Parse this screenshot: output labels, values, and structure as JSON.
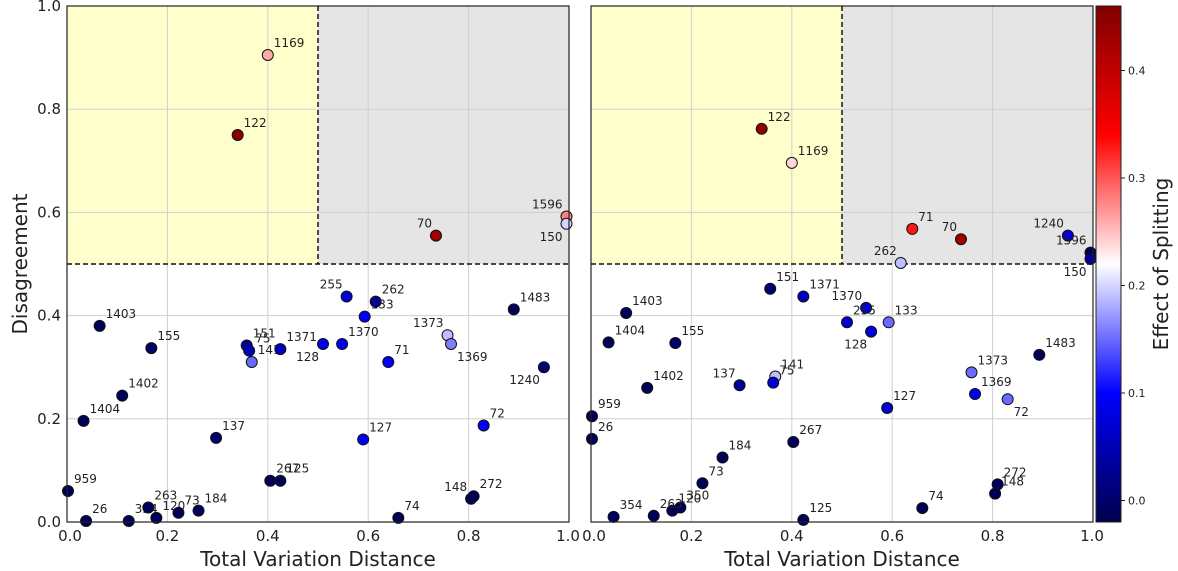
{
  "chart_data": [
    {
      "type": "scatter",
      "xlabel": "Total Variation Distance",
      "ylabel": "Disagreement",
      "xlim": [
        0,
        1
      ],
      "ylim": [
        0,
        1
      ],
      "xticks": [
        "0.0",
        "0.2",
        "0.4",
        "0.6",
        "0.8",
        "1.0"
      ],
      "yticks": [
        "0.0",
        "0.2",
        "0.4",
        "0.6",
        "0.8",
        "1.0"
      ],
      "grid": true,
      "threshold_x": 0.5,
      "threshold_y": 0.5,
      "region_colors": {
        "upper_left": "#ffffcc",
        "upper_right": "#e5e5e5"
      },
      "points": [
        {
          "label": "1169",
          "x": 0.4,
          "y": 0.905,
          "c": 0.26
        },
        {
          "label": "122",
          "x": 0.34,
          "y": 0.75,
          "c": 0.45
        },
        {
          "label": "1596",
          "x": 0.995,
          "y": 0.592,
          "c": 0.28
        },
        {
          "label": "150",
          "x": 0.995,
          "y": 0.578,
          "c": 0.2
        },
        {
          "label": "70",
          "x": 0.735,
          "y": 0.555,
          "c": 0.43
        },
        {
          "label": "255",
          "x": 0.557,
          "y": 0.437,
          "c": 0.07
        },
        {
          "label": "262",
          "x": 0.615,
          "y": 0.427,
          "c": 0.04
        },
        {
          "label": "133",
          "x": 0.593,
          "y": 0.398,
          "c": 0.1
        },
        {
          "label": "1483",
          "x": 0.89,
          "y": 0.412,
          "c": -0.01
        },
        {
          "label": "1403",
          "x": 0.065,
          "y": 0.38,
          "c": -0.01
        },
        {
          "label": "155",
          "x": 0.168,
          "y": 0.337,
          "c": 0.0
        },
        {
          "label": "151",
          "x": 0.358,
          "y": 0.342,
          "c": 0.04
        },
        {
          "label": "75",
          "x": 0.363,
          "y": 0.332,
          "c": 0.05
        },
        {
          "label": "141",
          "x": 0.368,
          "y": 0.31,
          "c": 0.15
        },
        {
          "label": "1371",
          "x": 0.425,
          "y": 0.335,
          "c": 0.06
        },
        {
          "label": "128",
          "x": 0.51,
          "y": 0.345,
          "c": 0.09
        },
        {
          "label": "1370",
          "x": 0.548,
          "y": 0.345,
          "c": 0.09
        },
        {
          "label": "1373",
          "x": 0.758,
          "y": 0.362,
          "c": 0.19
        },
        {
          "label": "1369",
          "x": 0.765,
          "y": 0.345,
          "c": 0.16
        },
        {
          "label": "71",
          "x": 0.64,
          "y": 0.31,
          "c": 0.1
        },
        {
          "label": "1240",
          "x": 0.95,
          "y": 0.3,
          "c": 0.01
        },
        {
          "label": "1402",
          "x": 0.11,
          "y": 0.245,
          "c": -0.01
        },
        {
          "label": "1404",
          "x": 0.033,
          "y": 0.196,
          "c": -0.01
        },
        {
          "label": "137",
          "x": 0.297,
          "y": 0.163,
          "c": 0.0
        },
        {
          "label": "127",
          "x": 0.59,
          "y": 0.16,
          "c": 0.09
        },
        {
          "label": "72",
          "x": 0.83,
          "y": 0.187,
          "c": 0.1
        },
        {
          "label": "267",
          "x": 0.405,
          "y": 0.08,
          "c": -0.01
        },
        {
          "label": "125",
          "x": 0.425,
          "y": 0.08,
          "c": -0.01
        },
        {
          "label": "959",
          "x": 0.002,
          "y": 0.06,
          "c": -0.01
        },
        {
          "label": "26",
          "x": 0.038,
          "y": 0.002,
          "c": -0.01
        },
        {
          "label": "354",
          "x": 0.123,
          "y": 0.002,
          "c": -0.01
        },
        {
          "label": "263",
          "x": 0.162,
          "y": 0.028,
          "c": -0.01
        },
        {
          "label": "120",
          "x": 0.178,
          "y": 0.008,
          "c": -0.01
        },
        {
          "label": "73",
          "x": 0.222,
          "y": 0.018,
          "c": -0.01
        },
        {
          "label": "184",
          "x": 0.262,
          "y": 0.022,
          "c": -0.01
        },
        {
          "label": "148",
          "x": 0.805,
          "y": 0.045,
          "c": -0.01
        },
        {
          "label": "272",
          "x": 0.81,
          "y": 0.05,
          "c": -0.01
        },
        {
          "label": "74",
          "x": 0.66,
          "y": 0.008,
          "c": -0.01
        }
      ]
    },
    {
      "type": "scatter",
      "xlabel": "Total Variation Distance",
      "ylabel": "",
      "xlim": [
        0,
        1
      ],
      "ylim": [
        0,
        1
      ],
      "xticks": [
        "0.0",
        "0.2",
        "0.4",
        "0.6",
        "0.8",
        "1.0"
      ],
      "grid": true,
      "threshold_x": 0.5,
      "threshold_y": 0.5,
      "region_colors": {
        "upper_left": "#ffffcc",
        "upper_right": "#e5e5e5"
      },
      "points": [
        {
          "label": "122",
          "x": 0.34,
          "y": 0.762,
          "c": 0.45
        },
        {
          "label": "1169",
          "x": 0.4,
          "y": 0.696,
          "c": 0.24
        },
        {
          "label": "71",
          "x": 0.64,
          "y": 0.568,
          "c": 0.33
        },
        {
          "label": "70",
          "x": 0.737,
          "y": 0.548,
          "c": 0.43
        },
        {
          "label": "262",
          "x": 0.617,
          "y": 0.502,
          "c": 0.19
        },
        {
          "label": "1240",
          "x": 0.95,
          "y": 0.555,
          "c": 0.08
        },
        {
          "label": "1596",
          "x": 0.995,
          "y": 0.522,
          "c": -0.01
        },
        {
          "label": "150",
          "x": 0.995,
          "y": 0.51,
          "c": 0.03
        },
        {
          "label": "151",
          "x": 0.357,
          "y": 0.452,
          "c": 0.0
        },
        {
          "label": "1371",
          "x": 0.423,
          "y": 0.437,
          "c": 0.06
        },
        {
          "label": "1370",
          "x": 0.548,
          "y": 0.415,
          "c": 0.09
        },
        {
          "label": "133",
          "x": 0.593,
          "y": 0.387,
          "c": 0.15
        },
        {
          "label": "255",
          "x": 0.51,
          "y": 0.387,
          "c": 0.07
        },
        {
          "label": "128",
          "x": 0.558,
          "y": 0.369,
          "c": 0.08
        },
        {
          "label": "1403",
          "x": 0.07,
          "y": 0.405,
          "c": -0.01
        },
        {
          "label": "1404",
          "x": 0.035,
          "y": 0.348,
          "c": -0.01
        },
        {
          "label": "155",
          "x": 0.168,
          "y": 0.347,
          "c": 0.0
        },
        {
          "label": "1483",
          "x": 0.893,
          "y": 0.324,
          "c": -0.01
        },
        {
          "label": "137",
          "x": 0.296,
          "y": 0.265,
          "c": 0.03
        },
        {
          "label": "141",
          "x": 0.367,
          "y": 0.282,
          "c": 0.19
        },
        {
          "label": "75",
          "x": 0.363,
          "y": 0.27,
          "c": 0.07
        },
        {
          "label": "1402",
          "x": 0.112,
          "y": 0.26,
          "c": -0.01
        },
        {
          "label": "1373",
          "x": 0.758,
          "y": 0.29,
          "c": 0.15
        },
        {
          "label": "1369",
          "x": 0.765,
          "y": 0.248,
          "c": 0.09
        },
        {
          "label": "72",
          "x": 0.83,
          "y": 0.238,
          "c": 0.15
        },
        {
          "label": "127",
          "x": 0.59,
          "y": 0.221,
          "c": 0.07
        },
        {
          "label": "959",
          "x": 0.002,
          "y": 0.205,
          "c": -0.01
        },
        {
          "label": "26",
          "x": 0.002,
          "y": 0.161,
          "c": -0.01
        },
        {
          "label": "267",
          "x": 0.403,
          "y": 0.155,
          "c": -0.01
        },
        {
          "label": "184",
          "x": 0.262,
          "y": 0.125,
          "c": -0.01
        },
        {
          "label": "73",
          "x": 0.222,
          "y": 0.075,
          "c": -0.01
        },
        {
          "label": "272",
          "x": 0.81,
          "y": 0.073,
          "c": -0.01
        },
        {
          "label": "148",
          "x": 0.805,
          "y": 0.055,
          "c": -0.01
        },
        {
          "label": "74",
          "x": 0.66,
          "y": 0.027,
          "c": -0.01
        },
        {
          "label": "350",
          "x": 0.178,
          "y": 0.028,
          "c": -0.01
        },
        {
          "label": "120",
          "x": 0.162,
          "y": 0.022,
          "c": -0.01
        },
        {
          "label": "263",
          "x": 0.125,
          "y": 0.012,
          "c": -0.01
        },
        {
          "label": "354",
          "x": 0.045,
          "y": 0.01,
          "c": -0.01
        },
        {
          "label": "125",
          "x": 0.423,
          "y": 0.004,
          "c": -0.01
        }
      ]
    }
  ],
  "colorbar": {
    "label": "Effect of Splitting",
    "min": -0.02,
    "max": 0.46,
    "ticks": [
      0.0,
      0.1,
      0.2,
      0.3,
      0.4
    ],
    "tick_labels": [
      "0.0",
      "0.1",
      "0.2",
      "0.3",
      "0.4"
    ],
    "colormap": "seismic",
    "colors": [
      "#00004c",
      "#0000ff",
      "#ffffff",
      "#ff0000",
      "#800000"
    ]
  }
}
